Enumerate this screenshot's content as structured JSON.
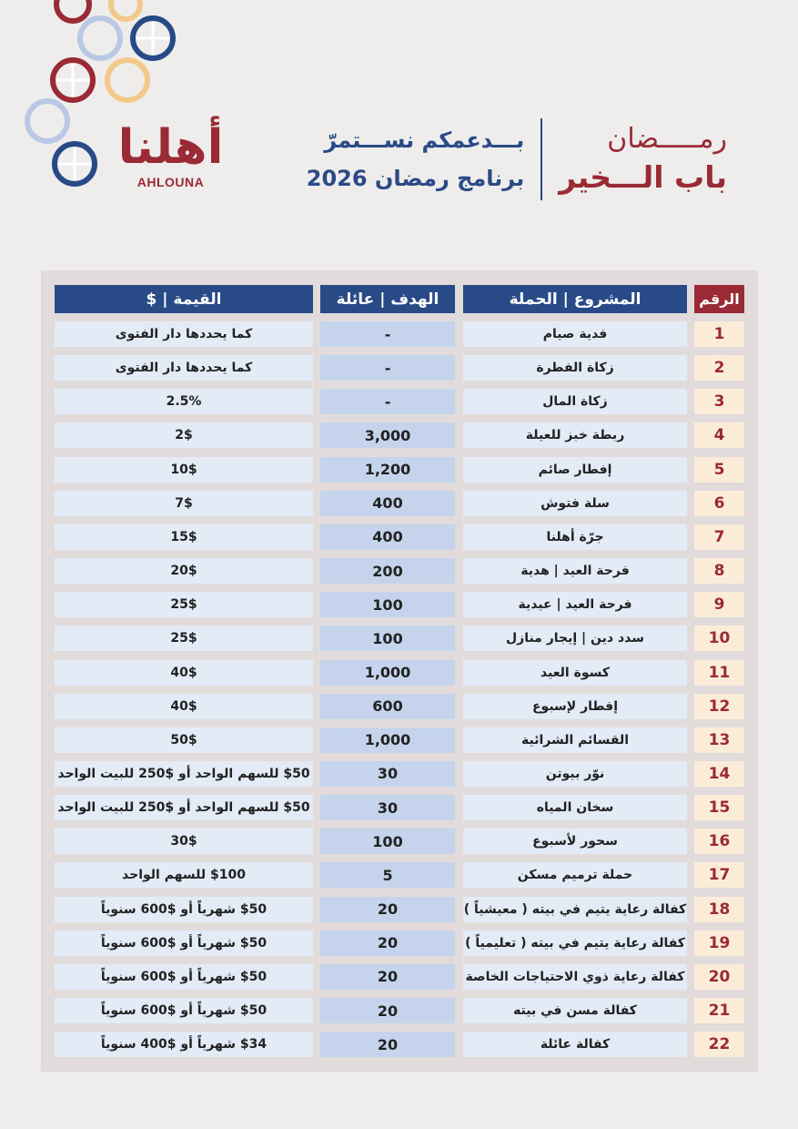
{
  "brand": {
    "logo_arabic": "أهلنا",
    "logo_latin": "AHLOUNA"
  },
  "header": {
    "title_line1": "رمـــــضان",
    "title_line2": "باب الـــخير",
    "subtitle_line1": "بـــدعمكم نســـتمرّ",
    "subtitle_line2": "برنامج رمضان 2026"
  },
  "colors": {
    "brand_red": "#9a2a35",
    "brand_blue": "#284a86",
    "cell_light": "#e3ebf7",
    "cell_mid": "#c5d4ec",
    "num_bg": "#fbecd9"
  },
  "table": {
    "headers": {
      "number": "الرقم",
      "project": "المشروع | الحملة",
      "target": "الهدف | عائلة",
      "value": "القيمة | $"
    },
    "rows": [
      {
        "n": "1",
        "project": "فدية صيام",
        "target": "-",
        "value": "كما يحددها دار الفتوى"
      },
      {
        "n": "2",
        "project": "زكاة الفطرة",
        "target": "-",
        "value": "كما يحددها دار الفتوى"
      },
      {
        "n": "3",
        "project": "زكاة المال",
        "target": "-",
        "value": "2.5%"
      },
      {
        "n": "4",
        "project": "ربطة خبز للعيلة",
        "target": "3,000",
        "value": "2$"
      },
      {
        "n": "5",
        "project": "إفطار صائم",
        "target": "1,200",
        "value": "10$"
      },
      {
        "n": "6",
        "project": "سلة فتوش",
        "target": "400",
        "value": "7$"
      },
      {
        "n": "7",
        "project": "جرّة أهلنا",
        "target": "400",
        "value": "15$"
      },
      {
        "n": "8",
        "project": "فرحة العيد | هدية",
        "target": "200",
        "value": "20$"
      },
      {
        "n": "9",
        "project": "فرحة العيد | عيدية",
        "target": "100",
        "value": "25$"
      },
      {
        "n": "10",
        "project": "سدد دين | إيجار منازل",
        "target": "100",
        "value": "25$"
      },
      {
        "n": "11",
        "project": "كسوة العيد",
        "target": "1,000",
        "value": "40$"
      },
      {
        "n": "12",
        "project": "إفطار لإسبوع",
        "target": "600",
        "value": "40$"
      },
      {
        "n": "13",
        "project": "القسائم الشرائية",
        "target": "1,000",
        "value": "50$"
      },
      {
        "n": "14",
        "project": "نوّر بيوتن",
        "target": "30",
        "value": "$50 للسهم الواحد أو $250 للبيت الواحد"
      },
      {
        "n": "15",
        "project": "سخان المياه",
        "target": "30",
        "value": "$50 للسهم الواحد أو $250 للبيت الواحد"
      },
      {
        "n": "16",
        "project": "سحور لأسبوع",
        "target": "100",
        "value": "30$"
      },
      {
        "n": "17",
        "project": "حملة ترميم مسكن",
        "target": "5",
        "value": "$100 للسهم الواحد"
      },
      {
        "n": "18",
        "project": "كفالة رعاية يتيم في بيته ( معيشياً )",
        "target": "20",
        "value": "$50 شهرياً أو $600 سنوياً"
      },
      {
        "n": "19",
        "project": "كفالة رعاية يتيم في بيته ( تعليمياً )",
        "target": "20",
        "value": "$50 شهرياً أو $600 سنوياً"
      },
      {
        "n": "20",
        "project": "كفالة رعاية ذوي الاحتياجات الخاصة",
        "target": "20",
        "value": "$50 شهرياً أو $600 سنوياً"
      },
      {
        "n": "21",
        "project": "كفالة مسن في بيته",
        "target": "20",
        "value": "$50 شهرياً أو $600 سنوياً"
      },
      {
        "n": "22",
        "project": "كفالة عائلة",
        "target": "20",
        "value": "$34 شهرياً أو $400 سنوياً"
      }
    ]
  }
}
